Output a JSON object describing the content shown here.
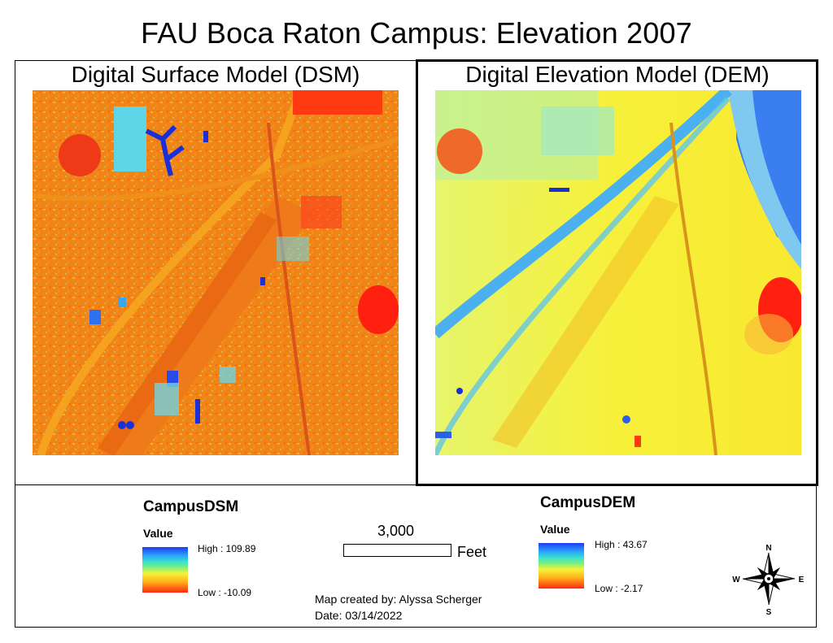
{
  "title": "FAU Boca Raton Campus: Elevation 2007",
  "panels": {
    "dsm": {
      "title": "Digital Surface Model (DSM)"
    },
    "dem": {
      "title": "Digital Elevation Model (DEM)"
    }
  },
  "legends": {
    "dsm": {
      "name": "CampusDSM",
      "value_label": "Value",
      "high": "High : 109.89",
      "low": "Low : -10.09"
    },
    "dem": {
      "name": "CampusDEM",
      "value_label": "Value",
      "high": "High : 43.67",
      "low": "Low : -2.17"
    }
  },
  "scale_bar": {
    "value": "3,000",
    "unit": "Feet"
  },
  "credit": {
    "author": "Map created by: Alyssa Scherger",
    "date": "Date: 03/14/2022"
  },
  "north_arrow": {
    "n": "N",
    "s": "S",
    "e": "E",
    "w": "W"
  },
  "colors": {
    "high": "#1e3cf0",
    "mid": "#f6f23a",
    "low": "#ff2a10"
  }
}
